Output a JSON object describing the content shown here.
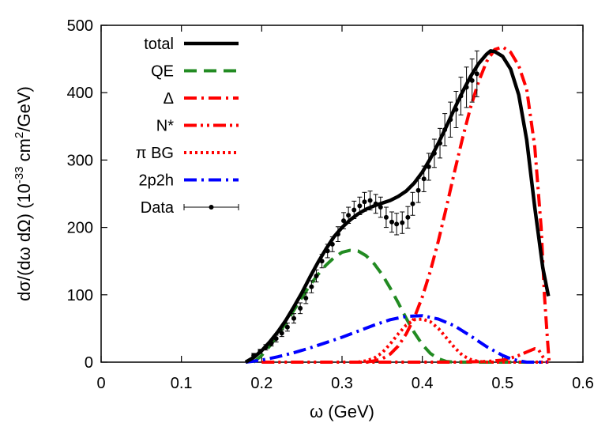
{
  "chart_data": {
    "type": "line",
    "title": "",
    "xlabel": "ω (GeV)",
    "ylabel": {
      "prefix": "dσ/(dω dΩ) (10",
      "exp1": "-33",
      "mid": " cm",
      "exp2": "2",
      "suffix": "/GeV)"
    },
    "xlim": [
      0,
      0.6
    ],
    "ylim": [
      0,
      500
    ],
    "xticks": [
      0,
      0.1,
      0.2,
      0.3,
      0.4,
      0.5,
      0.6
    ],
    "xtick_labels": [
      "0",
      "0.1",
      "0.2",
      "0.3",
      "0.4",
      "0.5",
      "0.6"
    ],
    "yticks": [
      0,
      100,
      200,
      300,
      400,
      500
    ],
    "ytick_labels": [
      "0",
      "100",
      "200",
      "300",
      "400",
      "500"
    ],
    "grid": false,
    "legend_position": "top-left",
    "series": [
      {
        "name": "total",
        "color": "#000000",
        "style": "solid",
        "points": [
          [
            0.18,
            0
          ],
          [
            0.19,
            7
          ],
          [
            0.2,
            17
          ],
          [
            0.21,
            30
          ],
          [
            0.22,
            45
          ],
          [
            0.23,
            62
          ],
          [
            0.24,
            82
          ],
          [
            0.25,
            103
          ],
          [
            0.26,
            126
          ],
          [
            0.27,
            148
          ],
          [
            0.28,
            168
          ],
          [
            0.29,
            186
          ],
          [
            0.3,
            200
          ],
          [
            0.31,
            211
          ],
          [
            0.32,
            220
          ],
          [
            0.33,
            227
          ],
          [
            0.34,
            232
          ],
          [
            0.35,
            236
          ],
          [
            0.36,
            240
          ],
          [
            0.37,
            246
          ],
          [
            0.38,
            254
          ],
          [
            0.39,
            266
          ],
          [
            0.4,
            282
          ],
          [
            0.41,
            302
          ],
          [
            0.42,
            325
          ],
          [
            0.43,
            350
          ],
          [
            0.44,
            376
          ],
          [
            0.45,
            401
          ],
          [
            0.46,
            424
          ],
          [
            0.47,
            443
          ],
          [
            0.48,
            457
          ],
          [
            0.485,
            462
          ],
          [
            0.49,
            461
          ],
          [
            0.5,
            454
          ],
          [
            0.51,
            435
          ],
          [
            0.52,
            397
          ],
          [
            0.53,
            330
          ],
          [
            0.54,
            230
          ],
          [
            0.55,
            140
          ],
          [
            0.557,
            98
          ]
        ]
      },
      {
        "name": "QE",
        "color": "#228b22",
        "style": "dashed",
        "points": [
          [
            0.19,
            0
          ],
          [
            0.2,
            10
          ],
          [
            0.21,
            24
          ],
          [
            0.22,
            40
          ],
          [
            0.23,
            58
          ],
          [
            0.24,
            77
          ],
          [
            0.25,
            96
          ],
          [
            0.26,
            114
          ],
          [
            0.27,
            130
          ],
          [
            0.28,
            144
          ],
          [
            0.29,
            155
          ],
          [
            0.3,
            163
          ],
          [
            0.31,
            166
          ],
          [
            0.32,
            165
          ],
          [
            0.33,
            158
          ],
          [
            0.34,
            146
          ],
          [
            0.35,
            130
          ],
          [
            0.36,
            110
          ],
          [
            0.37,
            88
          ],
          [
            0.38,
            65
          ],
          [
            0.39,
            44
          ],
          [
            0.4,
            26
          ],
          [
            0.41,
            13
          ],
          [
            0.42,
            5
          ],
          [
            0.43,
            1
          ],
          [
            0.44,
            0
          ],
          [
            0.53,
            0
          ]
        ]
      },
      {
        "name": "Δ",
        "color": "#ff0000",
        "style": "dashdot",
        "points": [
          [
            0.33,
            0
          ],
          [
            0.34,
            2
          ],
          [
            0.35,
            5
          ],
          [
            0.36,
            12
          ],
          [
            0.37,
            24
          ],
          [
            0.38,
            42
          ],
          [
            0.39,
            66
          ],
          [
            0.4,
            97
          ],
          [
            0.41,
            135
          ],
          [
            0.42,
            180
          ],
          [
            0.43,
            230
          ],
          [
            0.44,
            282
          ],
          [
            0.45,
            332
          ],
          [
            0.46,
            378
          ],
          [
            0.47,
            416
          ],
          [
            0.48,
            446
          ],
          [
            0.49,
            464
          ],
          [
            0.5,
            468
          ],
          [
            0.51,
            460
          ],
          [
            0.52,
            440
          ],
          [
            0.53,
            405
          ],
          [
            0.54,
            320
          ],
          [
            0.548,
            200
          ],
          [
            0.552,
            100
          ],
          [
            0.556,
            30
          ],
          [
            0.558,
            0
          ]
        ]
      },
      {
        "name": "N*",
        "color": "#ff0000",
        "style": "dashdotdot",
        "points": [
          [
            0.2,
            0
          ],
          [
            0.4,
            0
          ],
          [
            0.44,
            0
          ],
          [
            0.48,
            1
          ],
          [
            0.5,
            3
          ],
          [
            0.51,
            6
          ],
          [
            0.52,
            10
          ],
          [
            0.53,
            15
          ],
          [
            0.54,
            20
          ],
          [
            0.545,
            18
          ],
          [
            0.55,
            8
          ],
          [
            0.555,
            0
          ],
          [
            0.557,
            0
          ]
        ]
      },
      {
        "name": "π BG",
        "color": "#ff0000",
        "style": "dotted",
        "points": [
          [
            0.32,
            0
          ],
          [
            0.33,
            2
          ],
          [
            0.34,
            6
          ],
          [
            0.35,
            14
          ],
          [
            0.36,
            27
          ],
          [
            0.37,
            42
          ],
          [
            0.38,
            55
          ],
          [
            0.39,
            63
          ],
          [
            0.4,
            64
          ],
          [
            0.41,
            60
          ],
          [
            0.42,
            50
          ],
          [
            0.43,
            36
          ],
          [
            0.44,
            22
          ],
          [
            0.45,
            10
          ],
          [
            0.46,
            4
          ],
          [
            0.47,
            1
          ],
          [
            0.48,
            0
          ],
          [
            0.55,
            0
          ]
        ]
      },
      {
        "name": "2p2h",
        "color": "#0000ff",
        "style": "dashdot",
        "points": [
          [
            0.18,
            0
          ],
          [
            0.2,
            3
          ],
          [
            0.22,
            8
          ],
          [
            0.24,
            14
          ],
          [
            0.26,
            21
          ],
          [
            0.28,
            29
          ],
          [
            0.3,
            37
          ],
          [
            0.32,
            46
          ],
          [
            0.34,
            55
          ],
          [
            0.36,
            63
          ],
          [
            0.38,
            68
          ],
          [
            0.4,
            69
          ],
          [
            0.42,
            64
          ],
          [
            0.44,
            54
          ],
          [
            0.46,
            39
          ],
          [
            0.48,
            23
          ],
          [
            0.5,
            10
          ],
          [
            0.51,
            5
          ],
          [
            0.52,
            2
          ],
          [
            0.53,
            0
          ],
          [
            0.555,
            0
          ]
        ]
      }
    ],
    "data": {
      "name": "Data",
      "color": "#000000",
      "points": [
        [
          0.19,
          10,
          3
        ],
        [
          0.198,
          16,
          3
        ],
        [
          0.205,
          22,
          4
        ],
        [
          0.212,
          28,
          4
        ],
        [
          0.218,
          35,
          5
        ],
        [
          0.225,
          43,
          5
        ],
        [
          0.232,
          52,
          6
        ],
        [
          0.24,
          65,
          7
        ],
        [
          0.248,
          80,
          8
        ],
        [
          0.255,
          95,
          8
        ],
        [
          0.262,
          112,
          9
        ],
        [
          0.268,
          128,
          9
        ],
        [
          0.275,
          150,
          10
        ],
        [
          0.282,
          165,
          10
        ],
        [
          0.288,
          175,
          11
        ],
        [
          0.295,
          190,
          11
        ],
        [
          0.302,
          210,
          12
        ],
        [
          0.308,
          218,
          12
        ],
        [
          0.315,
          226,
          13
        ],
        [
          0.322,
          232,
          13
        ],
        [
          0.328,
          238,
          14
        ],
        [
          0.335,
          240,
          14
        ],
        [
          0.342,
          235,
          14
        ],
        [
          0.348,
          230,
          15
        ],
        [
          0.355,
          215,
          15
        ],
        [
          0.362,
          208,
          15
        ],
        [
          0.368,
          205,
          16
        ],
        [
          0.375,
          207,
          16
        ],
        [
          0.382,
          215,
          16
        ],
        [
          0.388,
          235,
          17
        ],
        [
          0.395,
          255,
          18
        ],
        [
          0.402,
          272,
          19
        ],
        [
          0.408,
          290,
          20
        ],
        [
          0.415,
          310,
          21
        ],
        [
          0.422,
          325,
          22
        ],
        [
          0.428,
          345,
          24
        ],
        [
          0.435,
          360,
          26
        ],
        [
          0.442,
          375,
          27
        ],
        [
          0.448,
          395,
          28
        ],
        [
          0.455,
          408,
          30
        ],
        [
          0.462,
          418,
          32
        ],
        [
          0.468,
          428,
          34
        ]
      ]
    }
  }
}
